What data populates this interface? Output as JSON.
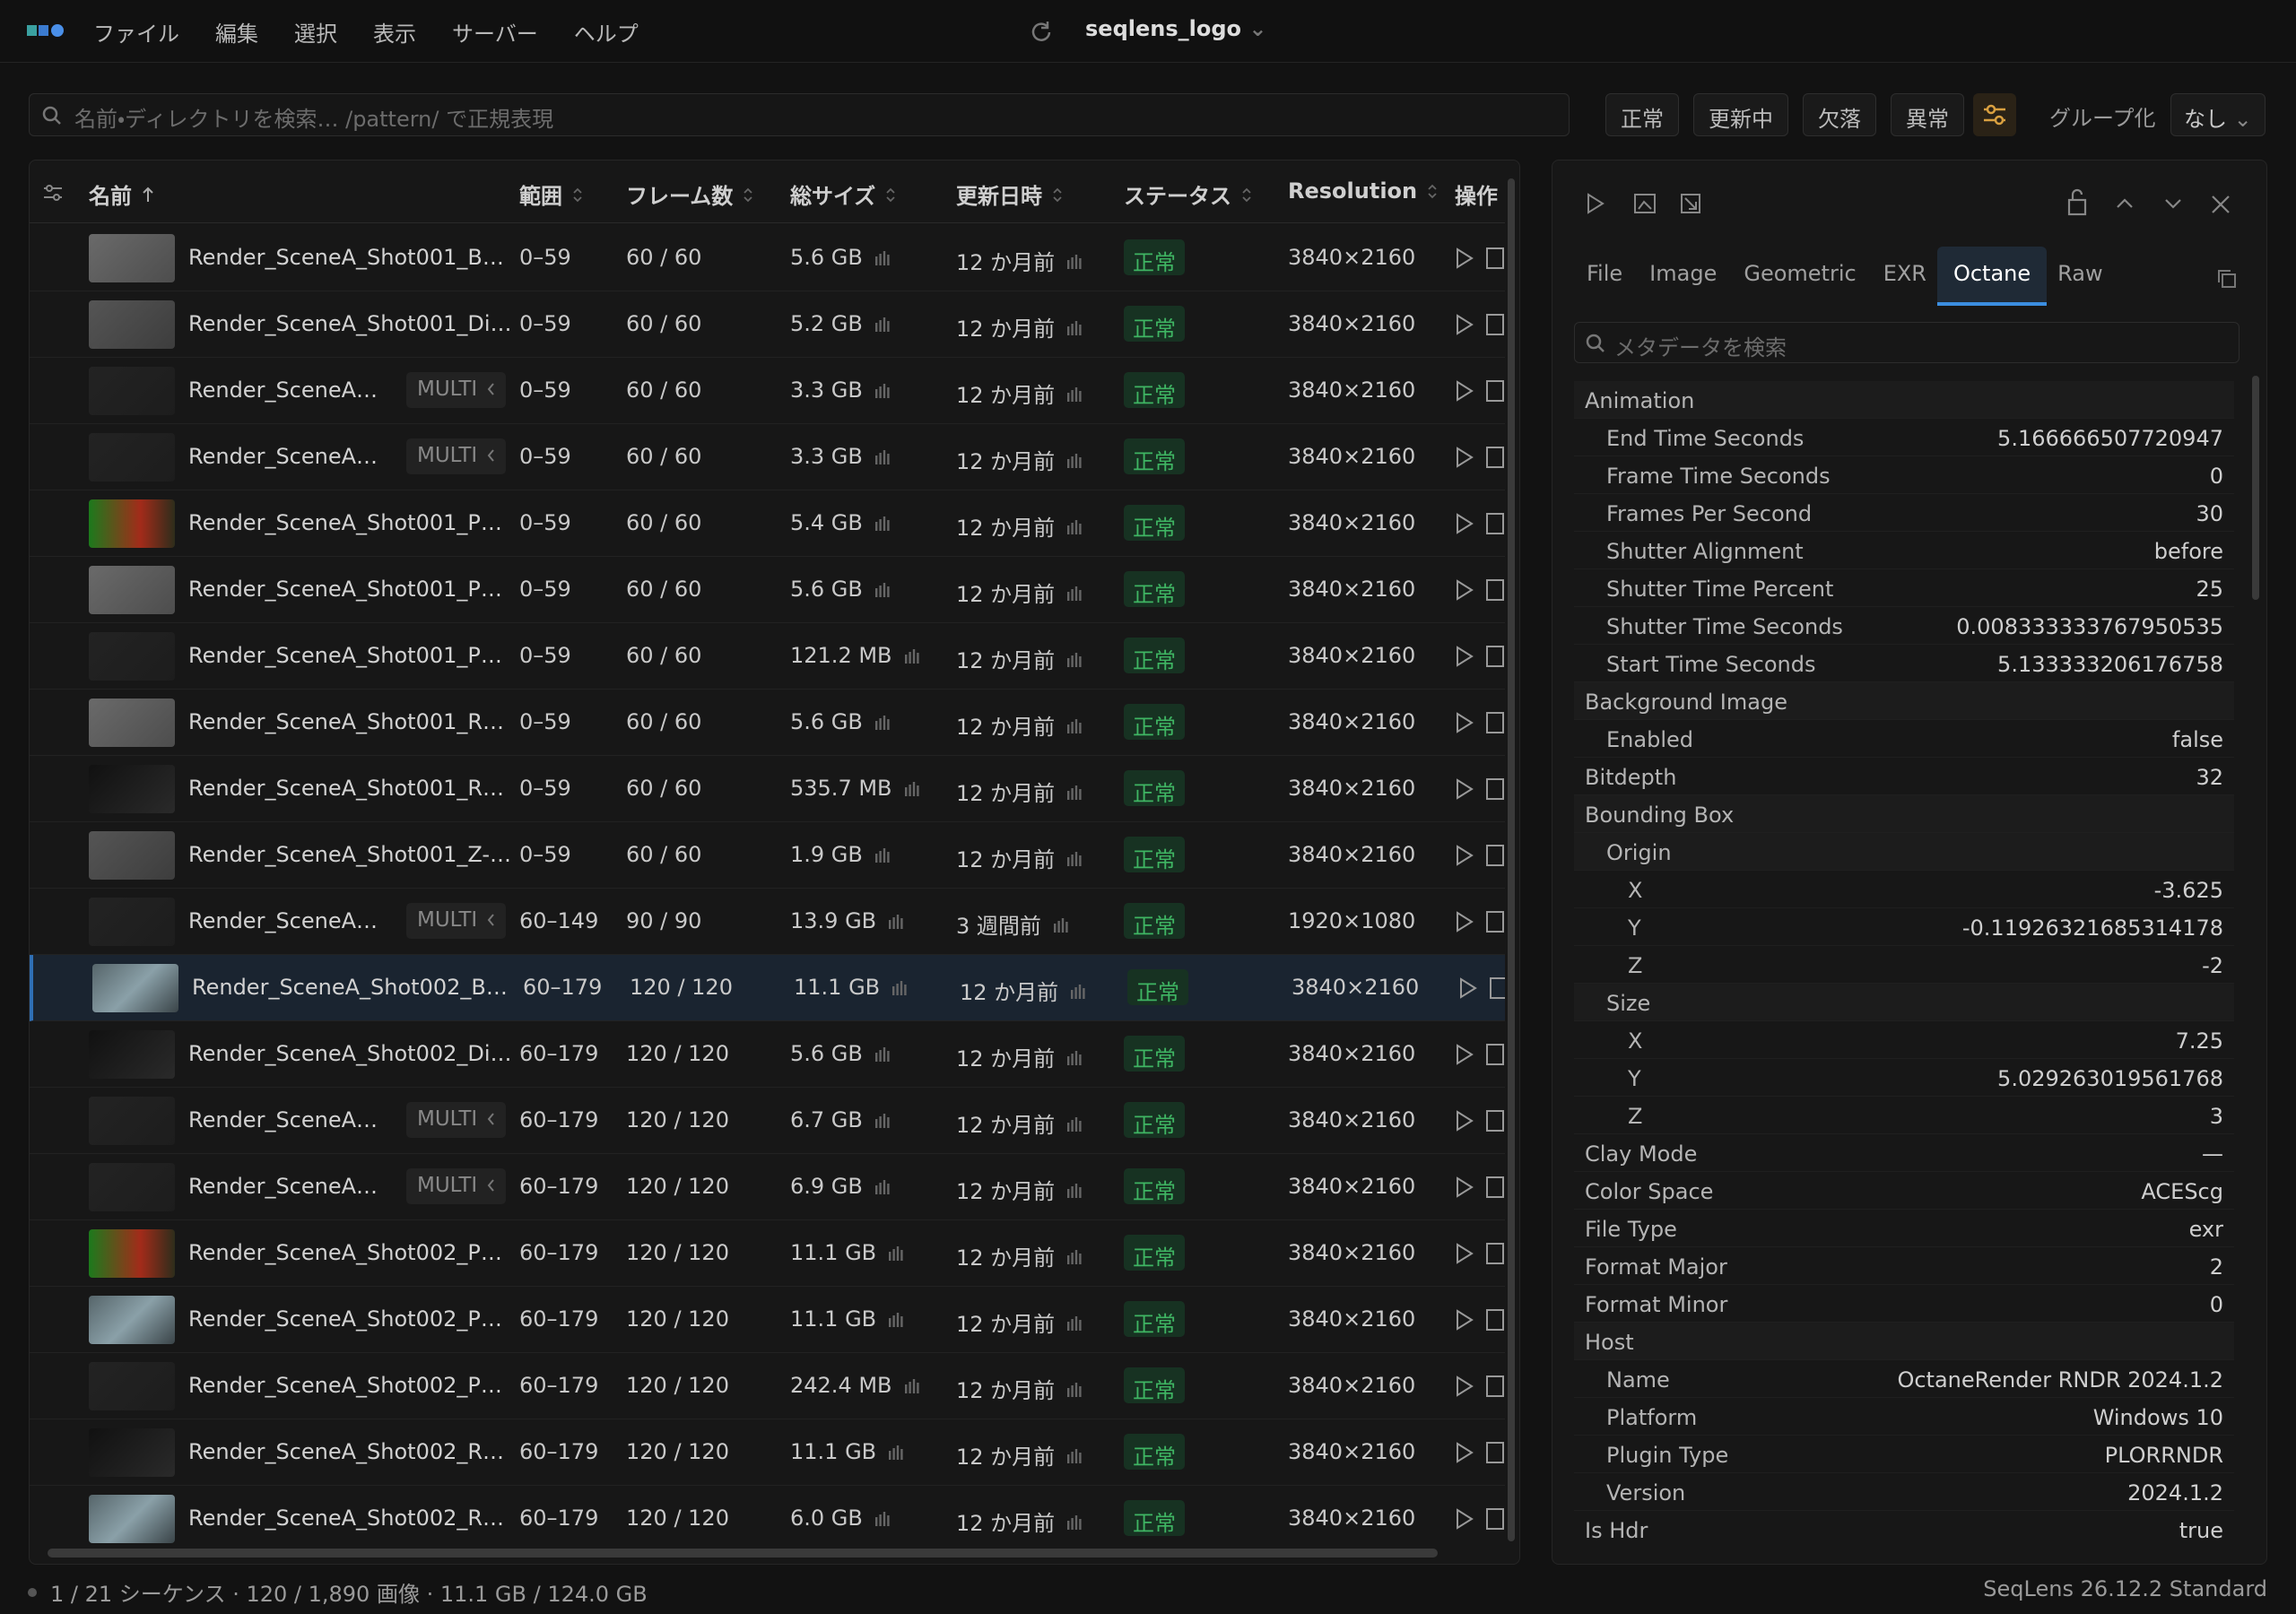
{
  "app": {
    "menu": [
      "ファイル",
      "編集",
      "選択",
      "表示",
      "サーバー",
      "ヘルプ"
    ],
    "title": "seqlens_logo"
  },
  "toolbar": {
    "search_placeholder": "名前・ディレクトリを検索… /pattern/ で正規表現",
    "filters": [
      "正常",
      "更新中",
      "欠落",
      "異常"
    ],
    "group_label": "グループ化",
    "group_value": "なし"
  },
  "table": {
    "columns": [
      "名前",
      "範囲",
      "フレーム数",
      "総サイズ",
      "更新日時",
      "ステータス",
      "Resolution",
      "操作"
    ],
    "rows": [
      {
        "name": "Render_SceneA_Shot001_B…",
        "range": "0–59",
        "frames": "60 / 60",
        "size": "5.6 GB",
        "updated": "12 か月前",
        "status": "正常",
        "resolution": "3840×2160"
      },
      {
        "name": "Render_SceneA_Shot001_Di…",
        "range": "0–59",
        "frames": "60 / 60",
        "size": "5.2 GB",
        "updated": "12 か月前",
        "status": "正常",
        "resolution": "3840×2160"
      },
      {
        "name": "Render_SceneA…",
        "badge": "MULTI",
        "range": "0–59",
        "frames": "60 / 60",
        "size": "3.3 GB",
        "updated": "12 か月前",
        "status": "正常",
        "resolution": "3840×2160"
      },
      {
        "name": "Render_SceneA…",
        "badge": "MULTI",
        "range": "0–59",
        "frames": "60 / 60",
        "size": "3.3 GB",
        "updated": "12 か月前",
        "status": "正常",
        "resolution": "3840×2160"
      },
      {
        "name": "Render_SceneA_Shot001_P…",
        "range": "0–59",
        "frames": "60 / 60",
        "size": "5.4 GB",
        "updated": "12 か月前",
        "status": "正常",
        "resolution": "3840×2160"
      },
      {
        "name": "Render_SceneA_Shot001_P…",
        "range": "0–59",
        "frames": "60 / 60",
        "size": "5.6 GB",
        "updated": "12 か月前",
        "status": "正常",
        "resolution": "3840×2160"
      },
      {
        "name": "Render_SceneA_Shot001_P…",
        "range": "0–59",
        "frames": "60 / 60",
        "size": "121.2 MB",
        "updated": "12 か月前",
        "status": "正常",
        "resolution": "3840×2160"
      },
      {
        "name": "Render_SceneA_Shot001_R…",
        "range": "0–59",
        "frames": "60 / 60",
        "size": "5.6 GB",
        "updated": "12 か月前",
        "status": "正常",
        "resolution": "3840×2160"
      },
      {
        "name": "Render_SceneA_Shot001_R…",
        "range": "0–59",
        "frames": "60 / 60",
        "size": "535.7 MB",
        "updated": "12 か月前",
        "status": "正常",
        "resolution": "3840×2160"
      },
      {
        "name": "Render_SceneA_Shot001_Z-…",
        "range": "0–59",
        "frames": "60 / 60",
        "size": "1.9 GB",
        "updated": "12 か月前",
        "status": "正常",
        "resolution": "3840×2160"
      },
      {
        "name": "Render_SceneA…",
        "badge": "MULTI",
        "range": "60–149",
        "frames": "90 / 90",
        "size": "13.9 GB",
        "updated": "3 週間前",
        "status": "正常",
        "resolution": "1920×1080"
      },
      {
        "name": "Render_SceneA_Shot002_B…",
        "range": "60–179",
        "frames": "120 / 120",
        "size": "11.1 GB",
        "updated": "12 か月前",
        "status": "正常",
        "resolution": "3840×2160"
      },
      {
        "name": "Render_SceneA_Shot002_Di…",
        "range": "60–179",
        "frames": "120 / 120",
        "size": "5.6 GB",
        "updated": "12 か月前",
        "status": "正常",
        "resolution": "3840×2160"
      },
      {
        "name": "Render_SceneA…",
        "badge": "MULTI",
        "range": "60–179",
        "frames": "120 / 120",
        "size": "6.7 GB",
        "updated": "12 か月前",
        "status": "正常",
        "resolution": "3840×2160"
      },
      {
        "name": "Render_SceneA…",
        "badge": "MULTI",
        "range": "60–179",
        "frames": "120 / 120",
        "size": "6.9 GB",
        "updated": "12 か月前",
        "status": "正常",
        "resolution": "3840×2160"
      },
      {
        "name": "Render_SceneA_Shot002_P…",
        "range": "60–179",
        "frames": "120 / 120",
        "size": "11.1 GB",
        "updated": "12 か月前",
        "status": "正常",
        "resolution": "3840×2160"
      },
      {
        "name": "Render_SceneA_Shot002_P…",
        "range": "60–179",
        "frames": "120 / 120",
        "size": "11.1 GB",
        "updated": "12 か月前",
        "status": "正常",
        "resolution": "3840×2160"
      },
      {
        "name": "Render_SceneA_Shot002_P…",
        "range": "60–179",
        "frames": "120 / 120",
        "size": "242.4 MB",
        "updated": "12 か月前",
        "status": "正常",
        "resolution": "3840×2160"
      },
      {
        "name": "Render_SceneA_Shot002_R…",
        "range": "60–179",
        "frames": "120 / 120",
        "size": "11.1 GB",
        "updated": "12 か月前",
        "status": "正常",
        "resolution": "3840×2160"
      },
      {
        "name": "Render_SceneA_Shot002_R…",
        "range": "60–179",
        "frames": "120 / 120",
        "size": "6.0 GB",
        "updated": "12 か月前",
        "status": "正常",
        "resolution": "3840×2160"
      }
    ]
  },
  "panel": {
    "tabs": [
      "File",
      "Image",
      "Geometric",
      "EXR",
      "Octane",
      "Raw"
    ],
    "active_tab": 4,
    "search_placeholder": "メタデータを検索",
    "properties": [
      {
        "label": "Animation",
        "level": 0
      },
      {
        "label": "End Time Seconds",
        "value": "5.166666507720947",
        "level": 1
      },
      {
        "label": "Frame Time Seconds",
        "value": "0",
        "level": 1
      },
      {
        "label": "Frames Per Second",
        "value": "30",
        "level": 1
      },
      {
        "label": "Shutter Alignment",
        "value": "before",
        "level": 1
      },
      {
        "label": "Shutter Time Percent",
        "value": "25",
        "level": 1
      },
      {
        "label": "Shutter Time Seconds",
        "value": "0.008333333767950535",
        "level": 1
      },
      {
        "label": "Start Time Seconds",
        "value": "5.133333206176758",
        "level": 1
      },
      {
        "label": "Background Image",
        "level": 0
      },
      {
        "label": "Enabled",
        "value": "false",
        "level": 1
      },
      {
        "label": "Bitdepth",
        "value": "32",
        "level": 0
      },
      {
        "label": "Bounding Box",
        "level": 0
      },
      {
        "label": "Origin",
        "level": 1
      },
      {
        "label": "X",
        "value": "-3.625",
        "level": 2
      },
      {
        "label": "Y",
        "value": "-0.11926321685314178",
        "level": 2
      },
      {
        "label": "Z",
        "value": "-2",
        "level": 2
      },
      {
        "label": "Size",
        "level": 1
      },
      {
        "label": "X",
        "value": "7.25",
        "level": 2
      },
      {
        "label": "Y",
        "value": "5.029263019561768",
        "level": 2
      },
      {
        "label": "Z",
        "value": "3",
        "level": 2
      },
      {
        "label": "Clay Mode",
        "value": "—",
        "level": 0
      },
      {
        "label": "Color Space",
        "value": "ACEScg",
        "level": 0
      },
      {
        "label": "File Type",
        "value": "exr",
        "level": 0
      },
      {
        "label": "Format Major",
        "value": "2",
        "level": 0
      },
      {
        "label": "Format Minor",
        "value": "0",
        "level": 0
      },
      {
        "label": "Host",
        "level": 0
      },
      {
        "label": "Name",
        "value": "OctaneRender RNDR 2024.1.2",
        "level": 1
      },
      {
        "label": "Platform",
        "value": "Windows 10",
        "level": 1
      },
      {
        "label": "Plugin Type",
        "value": "PLORRNDR",
        "level": 1
      },
      {
        "label": "Version",
        "value": "2024.1.2",
        "level": 1
      },
      {
        "label": "Is Hdr",
        "value": "true",
        "level": 0
      }
    ]
  },
  "status_bar": {
    "summary": "1 / 21 シーケンス · 120 / 1,890 画像 · 11.1 GB / 124.0 GB",
    "version": "SeqLens 26.12.2 Standard"
  }
}
